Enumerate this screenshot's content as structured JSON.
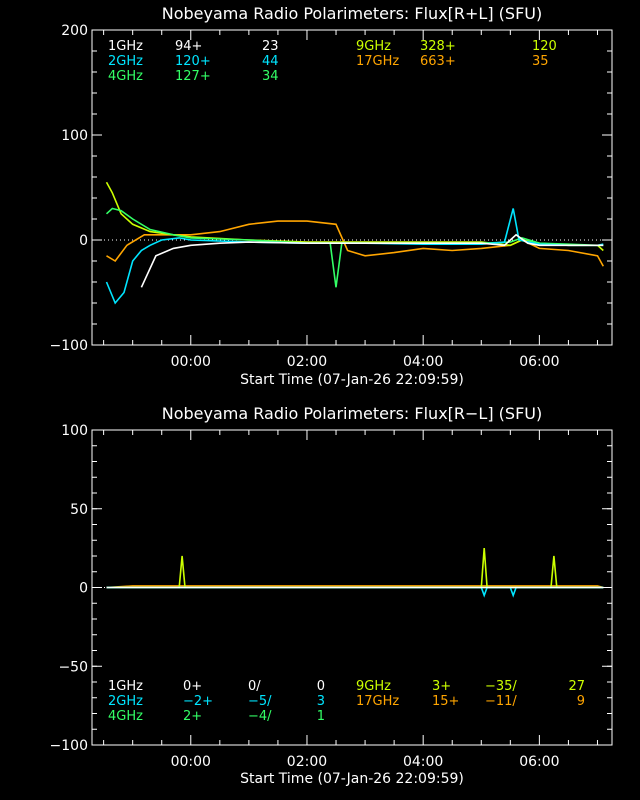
{
  "chart_data": [
    {
      "type": "line",
      "title": "Nobeyama Radio Polarimeters: Flux[R+L] (SFU)",
      "xlabel": "Start Time (07-Jan-26 22:09:59)",
      "ylabel": "",
      "ylim": [
        -100,
        200
      ],
      "yticks": [
        -100,
        0,
        100,
        200
      ],
      "ytick_labels": [
        "−100",
        "0",
        "100",
        "200"
      ],
      "xticks": [
        "00:00",
        "02:00",
        "04:00",
        "06:00"
      ],
      "xticks_hours": [
        0,
        2,
        4,
        6
      ],
      "xlim_hours": [
        -1.7,
        7.25
      ],
      "grid": false,
      "legend": [
        {
          "name": "1GHz",
          "col1": "94+",
          "col2": "23",
          "color": "#ffffff"
        },
        {
          "name": "2GHz",
          "col1": "120+",
          "col2": "44",
          "color": "#00e5ff"
        },
        {
          "name": "4GHz",
          "col1": "127+",
          "col2": "34",
          "color": "#33ff66"
        },
        {
          "name": "9GHz",
          "col1": "328+",
          "col2": "120",
          "color": "#ccff00"
        },
        {
          "name": "17GHz",
          "col1": "663+",
          "col2": "35",
          "color": "#ffa500"
        }
      ],
      "series": [
        {
          "name": "17GHz",
          "color": "#ffa500",
          "x": [
            -1.45,
            -1.3,
            -1.1,
            -0.8,
            -0.5,
            0,
            0.5,
            1,
            1.5,
            2,
            2.5,
            2.7,
            3,
            3.5,
            4,
            4.5,
            5,
            5.5,
            5.7,
            6,
            6.5,
            7,
            7.1
          ],
          "y": [
            -15,
            -20,
            -5,
            5,
            5,
            5,
            8,
            15,
            18,
            18,
            15,
            -10,
            -15,
            -12,
            -8,
            -10,
            -8,
            -5,
            0,
            -8,
            -10,
            -15,
            -25
          ]
        },
        {
          "name": "9GHz",
          "color": "#ccff00",
          "x": [
            -1.45,
            -1.35,
            -1.2,
            -1,
            -0.7,
            -0.3,
            0,
            1,
            2,
            3,
            4,
            5,
            5.5,
            5.7,
            6,
            6.5,
            7,
            7.1
          ],
          "y": [
            55,
            45,
            25,
            15,
            8,
            5,
            3,
            0,
            -2,
            -2,
            -2,
            -2,
            -5,
            0,
            -3,
            -5,
            -5,
            -10
          ]
        },
        {
          "name": "4GHz",
          "color": "#33ff66",
          "x": [
            -1.45,
            -1.35,
            -1.2,
            -1,
            -0.7,
            -0.3,
            0,
            1,
            2,
            2.4,
            2.5,
            2.6,
            3,
            4,
            5,
            5.5,
            5.7,
            6,
            6.5,
            7,
            7.1
          ],
          "y": [
            25,
            30,
            28,
            20,
            10,
            5,
            2,
            0,
            -3,
            -3,
            -45,
            -3,
            -3,
            -3,
            -3,
            -2,
            2,
            -3,
            -4,
            -5,
            -5
          ]
        },
        {
          "name": "2GHz",
          "color": "#00e5ff",
          "x": [
            -1.45,
            -1.3,
            -1.15,
            -1,
            -0.85,
            -0.7,
            -0.5,
            -0.2,
            0,
            1,
            2,
            3,
            4,
            5,
            5.4,
            5.55,
            5.65,
            6,
            6.5,
            7,
            7.1
          ],
          "y": [
            -40,
            -60,
            -50,
            -20,
            -10,
            -5,
            0,
            2,
            0,
            -2,
            -3,
            -3,
            -4,
            -4,
            -2,
            30,
            0,
            -4,
            -5,
            -5,
            -4
          ]
        },
        {
          "name": "1GHz",
          "color": "#ffffff",
          "x": [
            -0.85,
            -0.6,
            -0.3,
            0,
            0.5,
            1,
            2,
            3,
            4,
            5,
            5.4,
            5.6,
            5.8,
            6,
            6.5,
            7,
            7.1
          ],
          "y": [
            -45,
            -15,
            -8,
            -5,
            -3,
            -2,
            -3,
            -3,
            -3,
            -3,
            -5,
            5,
            -3,
            -5,
            -5,
            -5,
            -5
          ]
        }
      ]
    },
    {
      "type": "line",
      "title": "Nobeyama Radio Polarimeters: Flux[R−L] (SFU)",
      "xlabel": "Start Time (07-Jan-26 22:09:59)",
      "ylabel": "",
      "ylim": [
        -100,
        100
      ],
      "yticks": [
        -100,
        -50,
        0,
        50,
        100
      ],
      "ytick_labels": [
        "−100",
        "−50",
        "0",
        "50",
        "100"
      ],
      "xticks": [
        "00:00",
        "02:00",
        "04:00",
        "06:00"
      ],
      "xticks_hours": [
        0,
        2,
        4,
        6
      ],
      "xlim_hours": [
        -1.7,
        7.25
      ],
      "grid": false,
      "legend": [
        {
          "name": "1GHz",
          "col1": "0+",
          "col2": "0/",
          "col3": "0",
          "color": "#ffffff"
        },
        {
          "name": "2GHz",
          "col1": "−2+",
          "col2": "−5/",
          "col3": "3",
          "color": "#00e5ff"
        },
        {
          "name": "4GHz",
          "col1": "2+",
          "col2": "−4/",
          "col3": "1",
          "color": "#33ff66"
        },
        {
          "name": "9GHz",
          "col1": "3+",
          "col2": "−35/",
          "col3": "27",
          "color": "#ccff00"
        },
        {
          "name": "17GHz",
          "col1": "15+",
          "col2": "−11/",
          "col3": "9",
          "color": "#ffa500"
        }
      ],
      "series": [
        {
          "name": "17GHz",
          "color": "#ffa500",
          "x": [
            -1.45,
            -1,
            0,
            1,
            2,
            3,
            4,
            5,
            6,
            7,
            7.1
          ],
          "y": [
            0,
            1,
            1,
            1,
            1,
            1,
            1,
            1,
            1,
            1,
            0
          ]
        },
        {
          "name": "9GHz",
          "color": "#ccff00",
          "x": [
            -1.45,
            -1,
            -0.2,
            -0.15,
            -0.1,
            0,
            1,
            2,
            3,
            4,
            5,
            5.05,
            5.1,
            6,
            6.2,
            6.25,
            6.3,
            7,
            7.1
          ],
          "y": [
            0,
            0,
            0,
            20,
            0,
            0,
            0,
            0,
            0,
            0,
            0,
            25,
            0,
            0,
            0,
            20,
            0,
            0,
            0
          ]
        },
        {
          "name": "4GHz",
          "color": "#33ff66",
          "x": [
            -1.45,
            0,
            2,
            4,
            6,
            7.1
          ],
          "y": [
            0,
            0,
            0,
            0,
            0,
            0
          ]
        },
        {
          "name": "2GHz",
          "color": "#00e5ff",
          "x": [
            -1.45,
            0,
            2,
            4,
            5,
            5.05,
            5.1,
            5.5,
            5.55,
            5.6,
            6,
            7.1
          ],
          "y": [
            0,
            0,
            0,
            0,
            0,
            -5,
            0,
            0,
            -5,
            0,
            0,
            0
          ]
        },
        {
          "name": "1GHz",
          "color": "#ffffff",
          "x": [
            -1.45,
            0,
            2,
            4,
            6,
            7.1
          ],
          "y": [
            0,
            0,
            0,
            0,
            0,
            0
          ]
        }
      ]
    }
  ]
}
